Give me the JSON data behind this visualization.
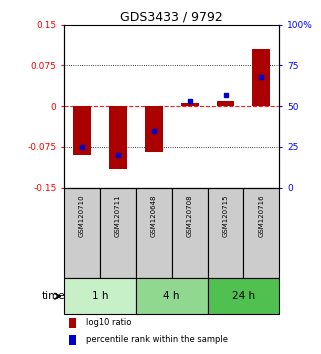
{
  "title": "GDS3433 / 9792",
  "samples": [
    "GSM120710",
    "GSM120711",
    "GSM120648",
    "GSM120708",
    "GSM120715",
    "GSM120716"
  ],
  "log10_ratio": [
    -0.09,
    -0.115,
    -0.085,
    0.005,
    0.01,
    0.105
  ],
  "percentile_rank": [
    25,
    20,
    35,
    53,
    57,
    68
  ],
  "groups": [
    {
      "label": "1 h",
      "indices": [
        0,
        1
      ],
      "color": "#c8f0c8"
    },
    {
      "label": "4 h",
      "indices": [
        2,
        3
      ],
      "color": "#90d890"
    },
    {
      "label": "24 h",
      "indices": [
        4,
        5
      ],
      "color": "#50c050"
    }
  ],
  "bar_color": "#aa0000",
  "square_color": "#0000cc",
  "ylim_left": [
    -0.15,
    0.15
  ],
  "ylim_right": [
    0,
    100
  ],
  "yticks_left": [
    -0.15,
    -0.075,
    0,
    0.075,
    0.15
  ],
  "yticks_left_labels": [
    "-0.15",
    "-0.075",
    "0",
    "0.075",
    "0.15"
  ],
  "yticks_right": [
    0,
    25,
    50,
    75,
    100
  ],
  "yticks_right_labels": [
    "0",
    "25",
    "50",
    "75",
    "100%"
  ],
  "hlines": [
    0.075,
    0,
    -0.075
  ],
  "hlines_styles": [
    "dotted",
    "dashed",
    "dotted"
  ],
  "background_color": "#ffffff",
  "tick_label_area_color": "#cccccc",
  "time_label": "time"
}
